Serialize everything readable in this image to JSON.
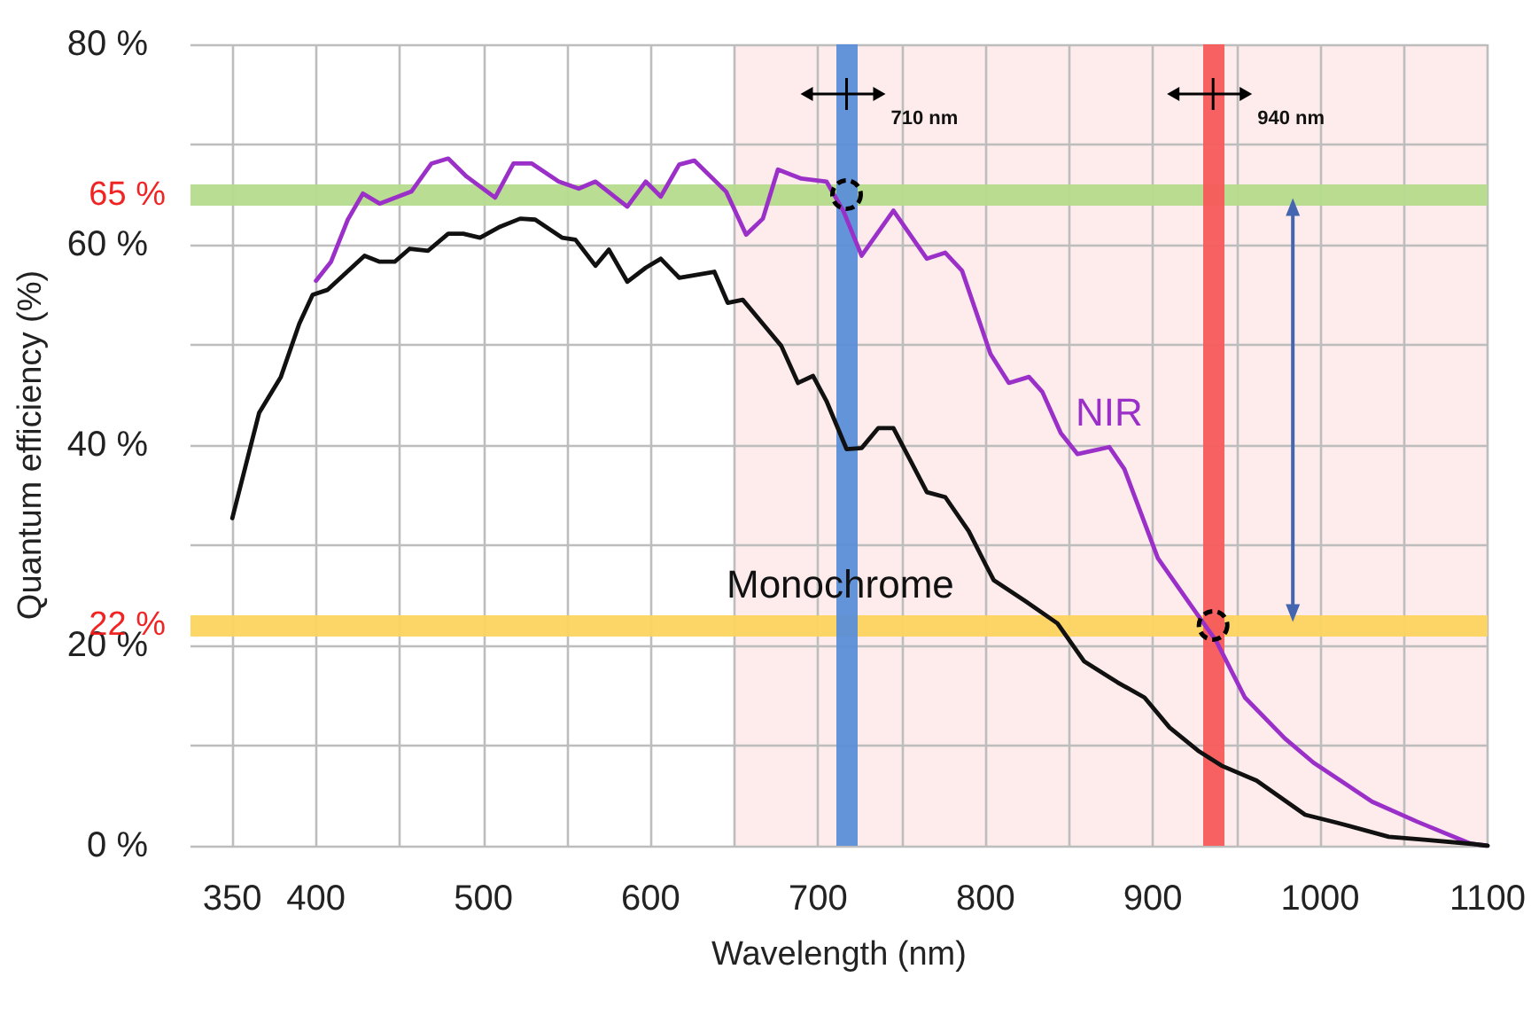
{
  "chart_data": {
    "type": "line",
    "xlabel": "Wavelength (nm)",
    "ylabel": "Quantum efficiency (%)",
    "xlim": [
      325,
      1100
    ],
    "xticks": [
      350,
      400,
      {
        "value": 450,
        "label": null
      },
      500,
      {
        "value": 550,
        "label": null
      },
      600,
      {
        "value": 650,
        "label": null
      },
      700,
      {
        "value": 750,
        "label": null
      },
      800,
      {
        "value": 850,
        "label": null
      },
      900,
      {
        "value": 950,
        "label": null
      },
      1000,
      {
        "value": 1050,
        "label": null
      },
      1100
    ],
    "ylim": [
      0,
      80
    ],
    "yticks": [
      {
        "value": 0,
        "label": "0 %"
      },
      {
        "value": 10,
        "label": null
      },
      {
        "value": 20,
        "label": "20 %"
      },
      {
        "value": 30,
        "label": null
      },
      {
        "value": 40,
        "label": "40 %"
      },
      {
        "value": 50,
        "label": null
      },
      {
        "value": 60,
        "label": "60 %"
      },
      {
        "value": 70,
        "label": null
      },
      {
        "value": 80,
        "label": "80 %"
      }
    ],
    "grid": true,
    "legend": false,
    "marker": "none",
    "line_style": "solid",
    "series": [
      {
        "name": "NIR",
        "color": "#9b30c8",
        "x": [
          400,
          409,
          419,
          428,
          438,
          457,
          469,
          479,
          490,
          507,
          518,
          529,
          545,
          557,
          567,
          586,
          597,
          606,
          617,
          626,
          645,
          657,
          667,
          676,
          690,
          705,
          715,
          726,
          745,
          765,
          776,
          786,
          803,
          814,
          826,
          834,
          845,
          855,
          874,
          883,
          903,
          924,
          938,
          955,
          979,
          996,
          1031,
          1058,
          1090,
          1100
        ],
        "values": [
          56.4,
          58.3,
          62.5,
          65.1,
          64.1,
          65.3,
          68.1,
          68.6,
          66.8,
          64.7,
          68.1,
          68.1,
          66.3,
          65.6,
          66.3,
          63.8,
          66.3,
          64.8,
          68.0,
          68.4,
          65.3,
          61.0,
          62.6,
          67.5,
          66.6,
          66.3,
          63.4,
          58.9,
          63.4,
          58.6,
          59.2,
          57.4,
          49.1,
          46.2,
          46.8,
          45.3,
          41.2,
          39.1,
          39.8,
          37.6,
          28.7,
          23.7,
          20.4,
          14.8,
          10.7,
          8.3,
          4.4,
          2.4,
          0.2,
          0
        ]
      },
      {
        "name": "Monochrome",
        "color": "#111111",
        "x": [
          350,
          366,
          379,
          390,
          398,
          407,
          429,
          438,
          447,
          456,
          467,
          479,
          488,
          498,
          510,
          522,
          531,
          547,
          555,
          567,
          575,
          586,
          597,
          606,
          617,
          638,
          646,
          655,
          667,
          678,
          688,
          697,
          705,
          717,
          726,
          736,
          745,
          755,
          765,
          776,
          790,
          800,
          805,
          824,
          843,
          859,
          879,
          895,
          910,
          927,
          941,
          962,
          991,
          1010,
          1041,
          1062,
          1090,
          1100
        ],
        "values": [
          32.7,
          43.2,
          46.8,
          52.1,
          55.0,
          55.5,
          58.9,
          58.3,
          58.3,
          59.6,
          59.4,
          61.1,
          61.1,
          60.7,
          61.8,
          62.6,
          62.5,
          60.7,
          60.5,
          57.9,
          59.5,
          56.3,
          57.7,
          58.6,
          56.7,
          57.3,
          54.2,
          54.5,
          52.1,
          49.9,
          46.2,
          46.9,
          44.4,
          39.6,
          39.7,
          41.7,
          41.7,
          38.5,
          35.3,
          34.8,
          31.4,
          28.1,
          26.5,
          24.4,
          22.2,
          18.4,
          16.3,
          14.8,
          11.8,
          9.5,
          8.0,
          6.5,
          3.1,
          2.3,
          0.9,
          0.6,
          0.2,
          0
        ]
      }
    ],
    "bands": [
      {
        "axis": "x",
        "from": 650,
        "to": 1100,
        "color": "#fdeceb"
      }
    ],
    "ref_lines": [
      {
        "axis": "y",
        "value": 65,
        "label": "65 %",
        "color": "#b5db8c"
      },
      {
        "axis": "y",
        "value": 22,
        "label": "22 %",
        "color": "#fcd45f"
      },
      {
        "axis": "x",
        "value": 717,
        "label": "710 nm",
        "color": "#5b8ed8"
      },
      {
        "axis": "x",
        "value": 936,
        "label": "940 nm",
        "color": "#f75a5a"
      }
    ]
  }
}
